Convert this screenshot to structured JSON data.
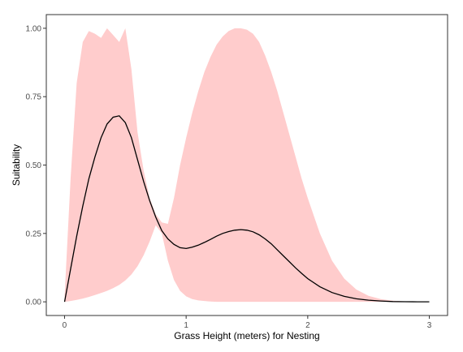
{
  "chart_data": {
    "type": "area",
    "title": "",
    "xlabel": "Grass Height (meters) for Nesting",
    "ylabel": "Suitability",
    "xlim": [
      -0.15,
      3.15
    ],
    "ylim": [
      -0.05,
      1.05
    ],
    "x_ticks": [
      0,
      1,
      2,
      3
    ],
    "x_tick_labels": [
      "0",
      "1",
      "2",
      "3"
    ],
    "y_ticks": [
      0,
      0.25,
      0.5,
      0.75,
      1.0
    ],
    "y_tick_labels": [
      "0.00",
      "0.25",
      "0.50",
      "0.75",
      "1.00"
    ],
    "grid": false,
    "legend": "none",
    "colors": {
      "band": "#ffcccc",
      "line": "#000000",
      "frame": "#333333"
    },
    "series": [
      {
        "kind": "line",
        "x": [
          0,
          0.05,
          0.1,
          0.15,
          0.2,
          0.25,
          0.3,
          0.35,
          0.4,
          0.45,
          0.5,
          0.55,
          0.6,
          0.65,
          0.7,
          0.75,
          0.8,
          0.85,
          0.9,
          0.95,
          1.0,
          1.05,
          1.1,
          1.15,
          1.2,
          1.25,
          1.3,
          1.35,
          1.4,
          1.45,
          1.5,
          1.55,
          1.6,
          1.65,
          1.7,
          1.75,
          1.8,
          1.85,
          1.9,
          1.95,
          2.0,
          2.1,
          2.2,
          2.3,
          2.4,
          2.5,
          2.6,
          2.7,
          2.8,
          2.9,
          3.0
        ],
        "y": [
          0.0,
          0.12,
          0.24,
          0.35,
          0.45,
          0.53,
          0.6,
          0.65,
          0.675,
          0.68,
          0.655,
          0.6,
          0.52,
          0.44,
          0.37,
          0.31,
          0.26,
          0.23,
          0.21,
          0.198,
          0.195,
          0.2,
          0.207,
          0.217,
          0.228,
          0.24,
          0.25,
          0.257,
          0.262,
          0.264,
          0.262,
          0.256,
          0.245,
          0.23,
          0.212,
          0.19,
          0.168,
          0.146,
          0.124,
          0.104,
          0.085,
          0.055,
          0.034,
          0.02,
          0.011,
          0.006,
          0.003,
          0.001,
          0.0005,
          0.0001,
          0.0
        ]
      },
      {
        "kind": "band",
        "x": [
          0,
          0.05,
          0.1,
          0.15,
          0.2,
          0.25,
          0.3,
          0.35,
          0.4,
          0.45,
          0.5,
          0.55,
          0.6,
          0.65,
          0.7,
          0.75,
          0.8,
          0.85,
          0.9,
          0.95,
          1.0,
          1.05,
          1.1,
          1.15,
          1.2,
          1.25,
          1.3,
          1.35,
          1.4,
          1.45,
          1.5,
          1.55,
          1.6,
          1.65,
          1.7,
          1.75,
          1.8,
          1.85,
          1.9,
          1.95,
          2.0,
          2.1,
          2.2,
          2.3,
          2.4,
          2.5,
          2.6,
          2.7,
          2.8,
          2.9,
          3.0
        ],
        "upper": [
          0.02,
          0.45,
          0.8,
          0.95,
          0.99,
          0.98,
          0.965,
          1.0,
          0.975,
          0.95,
          1.0,
          0.85,
          0.62,
          0.48,
          0.38,
          0.32,
          0.29,
          0.285,
          0.38,
          0.5,
          0.6,
          0.69,
          0.77,
          0.84,
          0.895,
          0.94,
          0.97,
          0.99,
          1.0,
          1.0,
          0.995,
          0.98,
          0.95,
          0.9,
          0.84,
          0.77,
          0.69,
          0.61,
          0.53,
          0.45,
          0.38,
          0.25,
          0.15,
          0.085,
          0.045,
          0.022,
          0.01,
          0.004,
          0.001,
          0.0003,
          0.0
        ],
        "lower": [
          0.0,
          0.003,
          0.007,
          0.012,
          0.018,
          0.025,
          0.032,
          0.04,
          0.05,
          0.062,
          0.078,
          0.1,
          0.13,
          0.17,
          0.22,
          0.28,
          0.25,
          0.15,
          0.08,
          0.04,
          0.02,
          0.01,
          0.005,
          0.003,
          0.001,
          0.0,
          0.0,
          0.0,
          0.0,
          0.0,
          0.0,
          0.0,
          0.0,
          0.0,
          0.0,
          0.0,
          0.0,
          0.0,
          0.0,
          0.0,
          0.0,
          0.0,
          0.0,
          0.0,
          0.0,
          0.0,
          0.0,
          0.0,
          0.0,
          0.0,
          0.0
        ]
      }
    ]
  }
}
